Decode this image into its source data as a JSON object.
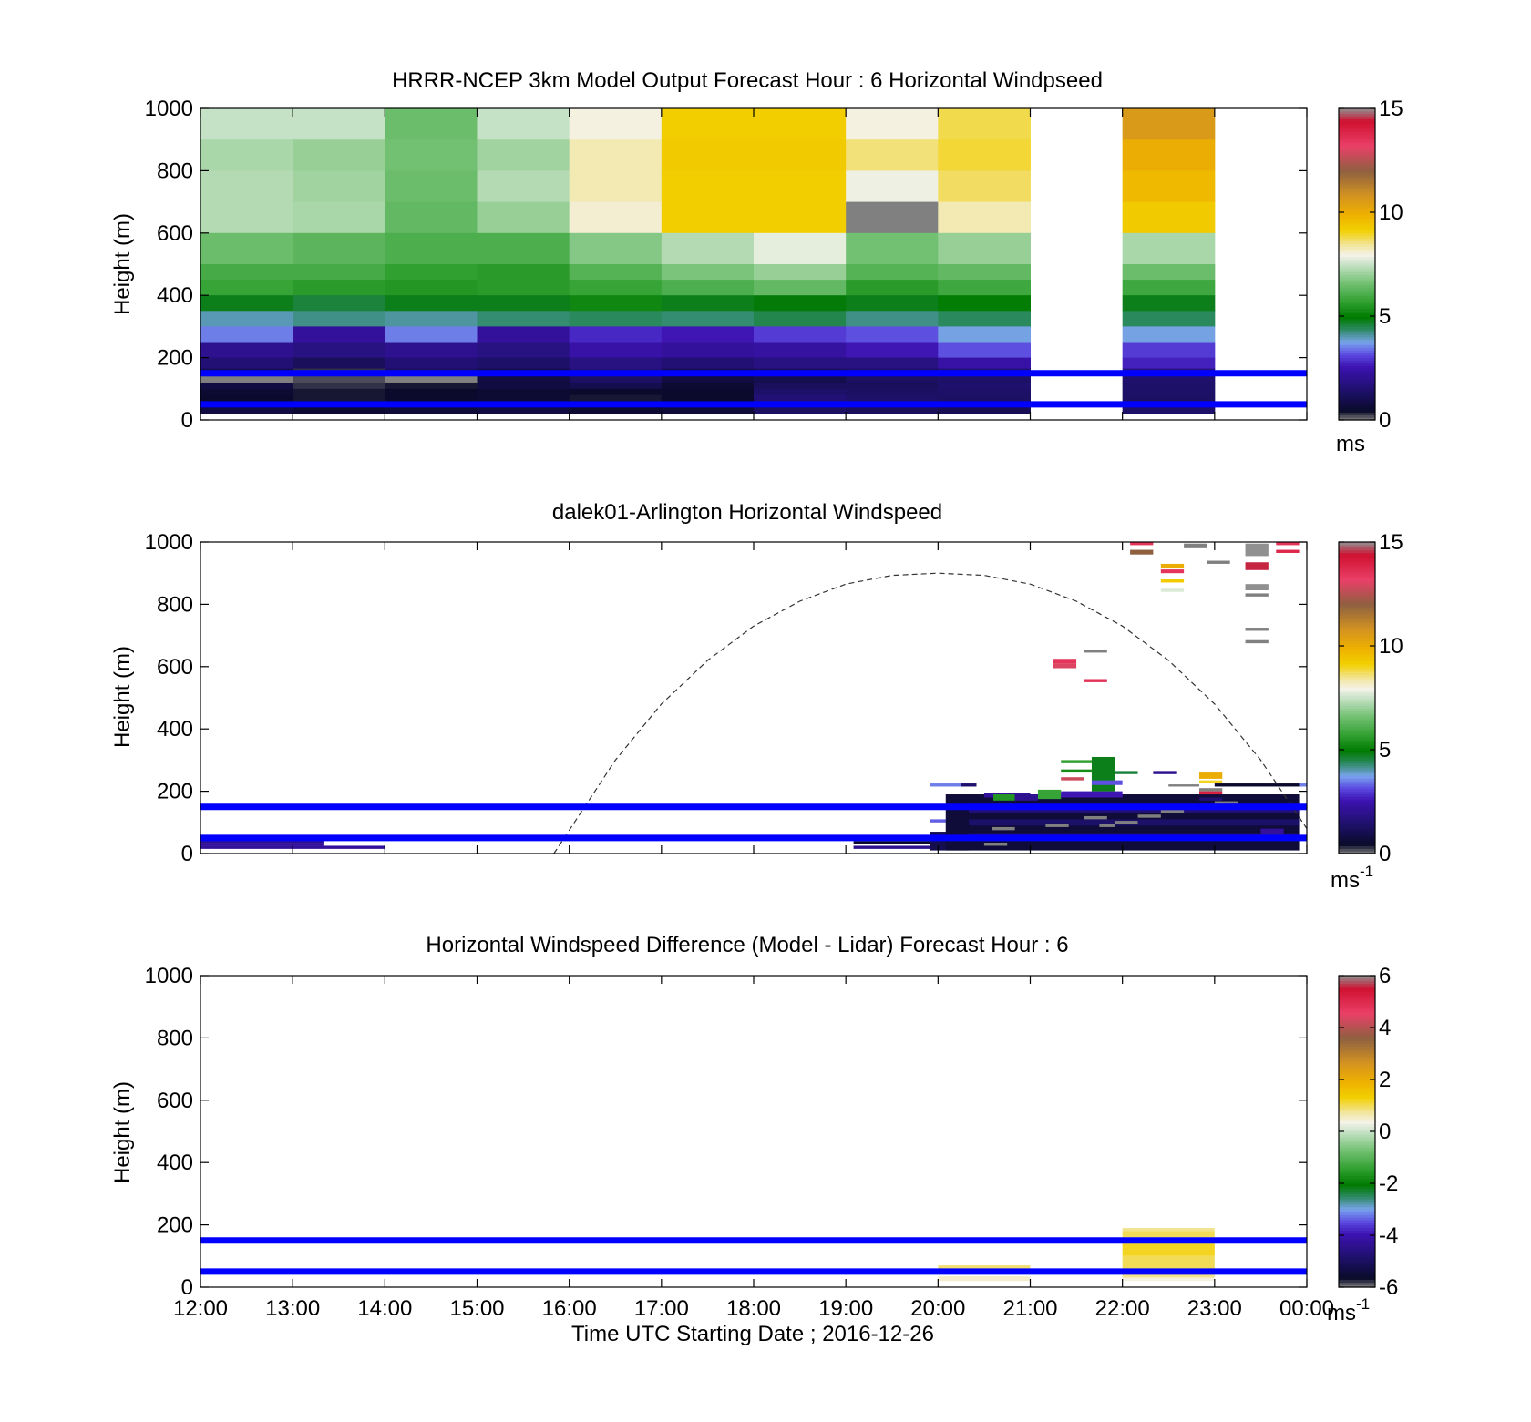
{
  "figure": {
    "xlabel": "Time UTC  Starting Date ; 2016-12-26",
    "colors": {
      "reference_line": "#0000ff",
      "axis": "#000000",
      "missing": "#808080"
    }
  },
  "chart_data": [
    {
      "id": "model",
      "type": "heatmap",
      "title": "HRRR-NCEP 3km Model Output   Forecast Hour : 6 Horizontal Windpseed",
      "xlabel": "",
      "ylabel": "Height (m)",
      "x_ticks": [
        "12:00",
        "13:00",
        "14:00",
        "15:00",
        "16:00",
        "17:00",
        "18:00",
        "19:00",
        "20:00",
        "21:00",
        "22:00",
        "23:00",
        "00:00"
      ],
      "x_tick_labels_shown": false,
      "xlim": [
        "12:00",
        "00:00"
      ],
      "ylim": [
        0,
        1000
      ],
      "y_ticks": [
        0,
        200,
        400,
        600,
        800,
        1000
      ],
      "colorbar": {
        "min": 0,
        "max": 15,
        "ticks": [
          0,
          5,
          10,
          15
        ],
        "unit": "ms"
      },
      "reference_heights": [
        150,
        50
      ],
      "cell_hours": [
        "12:00",
        "13:00",
        "14:00",
        "15:00",
        "16:00",
        "17:00",
        "18:00",
        "19:00",
        "20:00",
        "21:00",
        "22:00",
        "23:00"
      ],
      "height_levels": [
        [
          1000,
          900
        ],
        [
          900,
          800
        ],
        [
          800,
          700
        ],
        [
          700,
          600
        ],
        [
          600,
          500
        ],
        [
          500,
          450
        ],
        [
          450,
          400
        ],
        [
          400,
          350
        ],
        [
          350,
          300
        ],
        [
          300,
          250
        ],
        [
          250,
          200
        ],
        [
          200,
          165
        ],
        [
          165,
          140
        ],
        [
          140,
          120
        ],
        [
          120,
          100
        ],
        [
          100,
          80
        ],
        [
          80,
          60
        ],
        [
          60,
          40
        ],
        [
          40,
          20
        ]
      ],
      "columns": [
        [
          7.5,
          7.2,
          7.3,
          7.3,
          6.5,
          6.0,
          5.8,
          4.8,
          4.0,
          3.5,
          2.0,
          1.6,
          1.0,
          0.0,
          0.8,
          0.6,
          0.5,
          0.6,
          0.8
        ],
        [
          7.5,
          7.0,
          7.1,
          7.2,
          6.3,
          6.0,
          5.6,
          4.6,
          4.2,
          2.2,
          1.8,
          1.2,
          0.3,
          0.2,
          0.3,
          0.4,
          0.4,
          0.5,
          0.6
        ],
        [
          6.5,
          6.6,
          6.5,
          6.4,
          6.1,
          5.7,
          5.5,
          4.8,
          4.1,
          3.5,
          2.0,
          1.6,
          1.2,
          0.0,
          0.4,
          0.5,
          0.5,
          0.6,
          0.7
        ],
        [
          7.5,
          7.1,
          7.3,
          7.0,
          6.1,
          5.6,
          5.6,
          4.8,
          4.3,
          2.2,
          1.8,
          1.4,
          0.9,
          0.8,
          0.8,
          0.6,
          0.6,
          0.7,
          0.8
        ],
        [
          8.0,
          8.3,
          8.3,
          8.1,
          6.8,
          6.2,
          5.8,
          5.2,
          4.4,
          2.8,
          2.4,
          1.8,
          1.6,
          1.3,
          1.0,
          0.5,
          0.4,
          0.5,
          0.6
        ],
        [
          9.2,
          9.3,
          9.2,
          9.2,
          7.3,
          6.7,
          6.1,
          4.8,
          4.3,
          2.6,
          2.2,
          1.6,
          1.0,
          0.8,
          0.6,
          0.5,
          0.5,
          0.6,
          0.7
        ],
        [
          9.2,
          9.3,
          9.2,
          9.2,
          7.8,
          7.0,
          6.4,
          4.9,
          4.5,
          3.0,
          2.3,
          1.8,
          1.2,
          1.0,
          1.2,
          1.4,
          1.6,
          1.4,
          1.3
        ],
        [
          8.0,
          8.6,
          7.9,
          0.0,
          6.6,
          6.2,
          5.6,
          4.8,
          4.2,
          3.2,
          2.6,
          1.8,
          1.4,
          1.3,
          1.2,
          1.3,
          1.4,
          1.3,
          1.2
        ],
        [
          8.8,
          8.9,
          8.7,
          8.3,
          7.0,
          6.4,
          5.9,
          5.0,
          4.4,
          3.8,
          3.2,
          2.4,
          1.6,
          1.4,
          1.5,
          1.4,
          1.3,
          1.2,
          1.1
        ],
        [
          null,
          null,
          null,
          null,
          null,
          null,
          null,
          null,
          null,
          null,
          null,
          null,
          null,
          null,
          null,
          null,
          null,
          null,
          null
        ],
        [
          10.6,
          10.0,
          9.7,
          9.3,
          7.2,
          6.5,
          5.9,
          4.8,
          4.4,
          3.8,
          3.0,
          2.7,
          1.8,
          1.5,
          1.4,
          1.4,
          1.3,
          1.3,
          1.4
        ],
        [
          null,
          null,
          null,
          null,
          null,
          null,
          null,
          null,
          null,
          null,
          null,
          null,
          null,
          null,
          null,
          null,
          null,
          null,
          null
        ]
      ]
    },
    {
      "id": "lidar",
      "type": "heatmap",
      "title": "dalek01-Arlington  Horizontal Windspeed",
      "xlabel": "",
      "ylabel": "Height (m)",
      "x_ticks": [
        "12:00",
        "13:00",
        "14:00",
        "15:00",
        "16:00",
        "17:00",
        "18:00",
        "19:00",
        "20:00",
        "21:00",
        "22:00",
        "23:00",
        "00:00"
      ],
      "x_tick_labels_shown": false,
      "xlim": [
        "12:00",
        "00:00"
      ],
      "ylim": [
        0,
        1000
      ],
      "y_ticks": [
        0,
        200,
        400,
        600,
        800,
        1000
      ],
      "colorbar": {
        "min": 0,
        "max": 15,
        "ticks": [
          0,
          5,
          10,
          15
        ],
        "unit": "ms",
        "unit_exponent": "-1"
      },
      "reference_heights": [
        150,
        50
      ],
      "dashed_curve": {
        "x": [
          "15:50",
          "16:30",
          "17:00",
          "17:30",
          "18:00",
          "18:30",
          "19:00",
          "19:30",
          "20:00",
          "20:30",
          "21:00",
          "21:30",
          "22:00",
          "22:30",
          "23:00",
          "23:30",
          "00:00"
        ],
        "y": [
          0,
          300,
          480,
          620,
          730,
          810,
          865,
          893,
          900,
          893,
          865,
          810,
          730,
          620,
          480,
          300,
          80
        ]
      },
      "observations": [
        {
          "x0": "12:00",
          "x1": "13:20",
          "y0": 50,
          "y1": 60,
          "value": 2.5
        },
        {
          "x0": "12:00",
          "x1": "13:20",
          "y0": 35,
          "y1": 50,
          "value": 2.0
        },
        {
          "x0": "12:00",
          "x1": "13:20",
          "y0": 25,
          "y1": 35,
          "value": 2.2
        },
        {
          "x0": "12:00",
          "x1": "14:00",
          "y0": 15,
          "y1": 25,
          "value": 2.2
        },
        {
          "x0": "19:05",
          "x1": "19:55",
          "y0": 30,
          "y1": 40,
          "value": 0.5
        },
        {
          "x0": "19:05",
          "x1": "19:55",
          "y0": 15,
          "y1": 25,
          "value": 2.0
        },
        {
          "x0": "19:55",
          "x1": "20:20",
          "y0": 10,
          "y1": 70,
          "value": 1.0
        },
        {
          "x0": "19:55",
          "x1": "20:15",
          "y0": 215,
          "y1": 225,
          "value": 3.5
        },
        {
          "x0": "20:15",
          "x1": "20:25",
          "y0": 215,
          "y1": 225,
          "value": 1.5
        },
        {
          "x0": "19:55",
          "x1": "20:15",
          "y0": 100,
          "y1": 110,
          "value": 3.3
        },
        {
          "x0": "20:05",
          "x1": "23:55",
          "y0": 10,
          "y1": 190,
          "value": 0.7
        },
        {
          "x0": "20:20",
          "x1": "23:55",
          "y0": 130,
          "y1": 160,
          "value": 1.6
        },
        {
          "x0": "20:20",
          "x1": "23:55",
          "y0": 90,
          "y1": 110,
          "value": 1.4
        },
        {
          "x0": "20:20",
          "x1": "23:55",
          "y0": 50,
          "y1": 65,
          "value": 1.8
        },
        {
          "x0": "20:30",
          "x1": "21:00",
          "y0": 180,
          "y1": 195,
          "value": 2.2
        },
        {
          "x0": "20:36",
          "x1": "20:50",
          "y0": 170,
          "y1": 190,
          "value": 5.5
        },
        {
          "x0": "20:50",
          "x1": "21:05",
          "y0": 170,
          "y1": 190,
          "value": 2.0
        },
        {
          "x0": "21:05",
          "x1": "21:20",
          "y0": 175,
          "y1": 205,
          "value": 5.8
        },
        {
          "x0": "21:20",
          "x1": "21:35",
          "y0": 235,
          "y1": 245,
          "value": 12.8
        },
        {
          "x0": "21:20",
          "x1": "22:00",
          "y0": 180,
          "y1": 200,
          "value": 2.6
        },
        {
          "x0": "21:20",
          "x1": "21:40",
          "y0": 290,
          "y1": 300,
          "value": 5.7
        },
        {
          "x0": "21:20",
          "x1": "21:40",
          "y0": 260,
          "y1": 270,
          "value": 5.3
        },
        {
          "x0": "21:40",
          "x1": "21:55",
          "y0": 200,
          "y1": 310,
          "value": 4.8
        },
        {
          "x0": "21:55",
          "x1": "22:10",
          "y0": 255,
          "y1": 265,
          "value": 4.6
        },
        {
          "x0": "21:40",
          "x1": "22:00",
          "y0": 220,
          "y1": 235,
          "value": 3.2
        },
        {
          "x0": "22:20",
          "x1": "22:35",
          "y0": 255,
          "y1": 265,
          "value": 2.0
        },
        {
          "x0": "22:50",
          "x1": "23:05",
          "y0": 240,
          "y1": 260,
          "value": 10.0
        },
        {
          "x0": "22:50",
          "x1": "23:05",
          "y0": 225,
          "y1": 235,
          "value": 9.0
        },
        {
          "x0": "22:50",
          "x1": "23:05",
          "y0": 190,
          "y1": 200,
          "value": 14.0
        },
        {
          "x0": "22:50",
          "x1": "23:05",
          "y0": 200,
          "y1": 210,
          "value": 0.0
        },
        {
          "x0": "22:50",
          "x1": "23:05",
          "y0": 170,
          "y1": 180,
          "value": 1.5
        },
        {
          "x0": "22:30",
          "x1": "22:50",
          "y0": 215,
          "y1": 222,
          "value": 0.0
        },
        {
          "x0": "23:00",
          "x1": "23:55",
          "y0": 215,
          "y1": 225,
          "value": 0.5
        },
        {
          "x0": "23:55",
          "x1": "00:00",
          "y0": 215,
          "y1": 225,
          "value": 3.5
        },
        {
          "x0": "23:30",
          "x1": "23:45",
          "y0": 60,
          "y1": 80,
          "value": 2.2
        },
        {
          "x0": "20:35",
          "x1": "20:50",
          "y0": 75,
          "y1": 85,
          "value": 0.0
        },
        {
          "x0": "21:10",
          "x1": "21:25",
          "y0": 85,
          "y1": 95,
          "value": 0.0
        },
        {
          "x0": "21:35",
          "x1": "21:50",
          "y0": 110,
          "y1": 120,
          "value": 0.0
        },
        {
          "x0": "21:55",
          "x1": "22:10",
          "y0": 95,
          "y1": 105,
          "value": 0.0
        },
        {
          "x0": "22:10",
          "x1": "22:25",
          "y0": 115,
          "y1": 125,
          "value": 0.0
        },
        {
          "x0": "22:25",
          "x1": "22:40",
          "y0": 130,
          "y1": 140,
          "value": 0.0
        },
        {
          "x0": "23:00",
          "x1": "23:15",
          "y0": 160,
          "y1": 168,
          "value": 0.0
        },
        {
          "x0": "20:30",
          "x1": "20:45",
          "y0": 25,
          "y1": 35,
          "value": 0.0
        },
        {
          "x0": "21:45",
          "x1": "21:55",
          "y0": 85,
          "y1": 95,
          "value": 0.0
        },
        {
          "x0": "21:15",
          "x1": "21:30",
          "y0": 610,
          "y1": 625,
          "value": 13.5
        },
        {
          "x0": "21:15",
          "x1": "21:30",
          "y0": 595,
          "y1": 610,
          "value": 13.0
        },
        {
          "x0": "21:35",
          "x1": "21:50",
          "y0": 645,
          "y1": 655,
          "value": 0.0
        },
        {
          "x0": "21:35",
          "x1": "21:50",
          "y0": 550,
          "y1": 560,
          "value": 13.5
        },
        {
          "x0": "22:05",
          "x1": "22:20",
          "y0": 990,
          "y1": 1000,
          "value": 13.5
        },
        {
          "x0": "22:05",
          "x1": "22:20",
          "y0": 960,
          "y1": 975,
          "value": 12.0
        },
        {
          "x0": "22:25",
          "x1": "22:40",
          "y0": 915,
          "y1": 930,
          "value": 10.0
        },
        {
          "x0": "22:25",
          "x1": "22:40",
          "y0": 900,
          "y1": 912,
          "value": 13.5
        },
        {
          "x0": "22:25",
          "x1": "22:40",
          "y0": 870,
          "y1": 880,
          "value": 9.3
        },
        {
          "x0": "22:25",
          "x1": "22:40",
          "y0": 840,
          "y1": 850,
          "value": 7.7
        },
        {
          "x0": "22:40",
          "x1": "22:55",
          "y0": 980,
          "y1": 995,
          "value": 0.0
        },
        {
          "x0": "22:55",
          "x1": "23:10",
          "y0": 930,
          "y1": 940,
          "value": 0.0
        },
        {
          "x0": "23:20",
          "x1": "23:35",
          "y0": 955,
          "y1": 995,
          "value": 15.0
        },
        {
          "x0": "23:20",
          "x1": "23:35",
          "y0": 910,
          "y1": 935,
          "value": 14.5
        },
        {
          "x0": "23:20",
          "x1": "23:35",
          "y0": 845,
          "y1": 865,
          "value": 15.0
        },
        {
          "x0": "23:20",
          "x1": "23:35",
          "y0": 825,
          "y1": 835,
          "value": 0.0
        },
        {
          "x0": "23:40",
          "x1": "23:55",
          "y0": 990,
          "y1": 1000,
          "value": 13.5
        },
        {
          "x0": "23:40",
          "x1": "23:55",
          "y0": 965,
          "y1": 975,
          "value": 13.8
        },
        {
          "x0": "23:20",
          "x1": "23:35",
          "y0": 715,
          "y1": 725,
          "value": 0.0
        },
        {
          "x0": "23:20",
          "x1": "23:35",
          "y0": 675,
          "y1": 685,
          "value": 0.0
        }
      ]
    },
    {
      "id": "difference",
      "type": "heatmap",
      "title": "Horizontal Windspeed Difference (Model - Lidar) Forecast Hour : 6",
      "xlabel": "Time UTC  Starting Date ; 2016-12-26",
      "ylabel": "Height (m)",
      "x_ticks": [
        "12:00",
        "13:00",
        "14:00",
        "15:00",
        "16:00",
        "17:00",
        "18:00",
        "19:00",
        "20:00",
        "21:00",
        "22:00",
        "23:00",
        "00:00"
      ],
      "x_tick_labels_shown": true,
      "xlim": [
        "12:00",
        "00:00"
      ],
      "ylim": [
        0,
        1000
      ],
      "y_ticks": [
        0,
        200,
        400,
        600,
        800,
        1000
      ],
      "colorbar": {
        "min": -6,
        "max": 6,
        "ticks": [
          -6,
          -4,
          -2,
          0,
          2,
          4,
          6
        ],
        "unit": "ms",
        "unit_exponent": "-1"
      },
      "reference_heights": [
        150,
        50
      ],
      "observations": [
        {
          "x0": "20:00",
          "x1": "21:00",
          "y0": 60,
          "y1": 70,
          "value": 0.9
        },
        {
          "x0": "20:00",
          "x1": "21:00",
          "y0": 20,
          "y1": 35,
          "value": 0.5
        },
        {
          "x0": "22:00",
          "x1": "23:00",
          "y0": 180,
          "y1": 190,
          "value": 0.8
        },
        {
          "x0": "22:00",
          "x1": "23:00",
          "y0": 160,
          "y1": 180,
          "value": 1.0
        },
        {
          "x0": "22:00",
          "x1": "23:00",
          "y0": 100,
          "y1": 140,
          "value": 1.2
        },
        {
          "x0": "22:00",
          "x1": "23:00",
          "y0": 60,
          "y1": 100,
          "value": 1.0
        },
        {
          "x0": "22:00",
          "x1": "23:00",
          "y0": 30,
          "y1": 60,
          "value": 0.8
        },
        {
          "x0": "22:00",
          "x1": "23:00",
          "y0": 20,
          "y1": 30,
          "value": 0.4
        }
      ]
    }
  ]
}
